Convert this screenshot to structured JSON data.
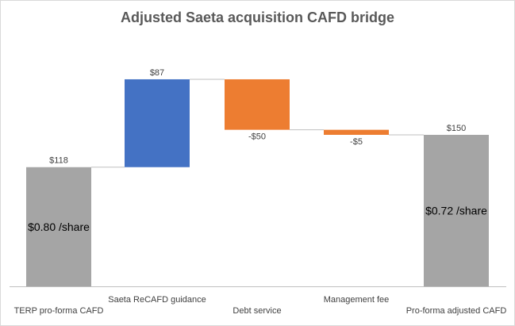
{
  "chart_data": {
    "type": "waterfall",
    "title": "Adjusted Saeta acquisition CAFD bridge",
    "categories": [
      "TERP pro-forma CAFD",
      "Saeta ReCAFD guidance",
      "Debt service",
      "Management fee",
      "Pro-forma adjusted CAFD"
    ],
    "values": [
      118,
      87,
      -50,
      -5,
      150
    ],
    "kinds": [
      "total",
      "increase",
      "decrease",
      "decrease",
      "total"
    ],
    "value_labels": [
      "$118",
      "$87",
      "-$50",
      "-$5",
      "$150"
    ],
    "bar_annotations": [
      "$0.80 /share",
      "",
      "",
      "",
      "$0.72 /share"
    ],
    "colors": {
      "total": "#a5a5a5",
      "increase": "#4472c4",
      "decrease": "#ed7d31",
      "connector": "#bfbfbf",
      "axis": "#bfbfbf"
    },
    "ylim": [
      0,
      220
    ],
    "grid": false,
    "legend": "none"
  }
}
